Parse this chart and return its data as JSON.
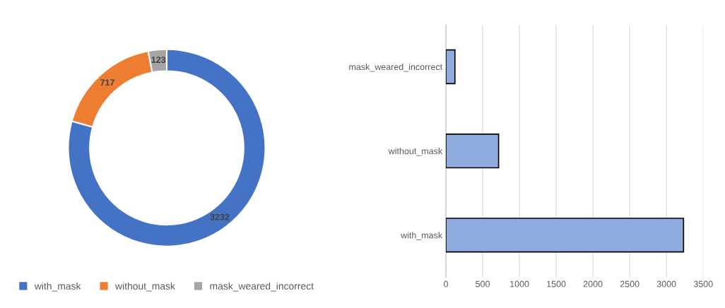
{
  "chart_data": [
    {
      "type": "donut",
      "categories": [
        "with_mask",
        "without_mask",
        "mask_weared_incorrect"
      ],
      "values": [
        3232,
        717,
        123
      ],
      "colors": [
        "#4472c4",
        "#ed7d31",
        "#a5a5a5"
      ],
      "data_labels": true,
      "legend": "bottom"
    },
    {
      "type": "bar",
      "orientation": "horizontal",
      "categories": [
        "mask_weared_incorrect",
        "without_mask",
        "with_mask"
      ],
      "values": [
        123,
        717,
        3232
      ],
      "color": "#8faadc",
      "xlim": [
        0,
        3500
      ],
      "xticks": [
        0,
        500,
        1000,
        1500,
        2000,
        2500,
        3000,
        3500
      ],
      "grid": "x"
    }
  ]
}
